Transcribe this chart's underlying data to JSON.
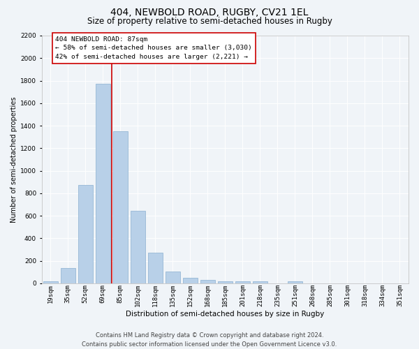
{
  "title": "404, NEWBOLD ROAD, RUGBY, CV21 1EL",
  "subtitle": "Size of property relative to semi-detached houses in Rugby",
  "xlabel": "Distribution of semi-detached houses by size in Rugby",
  "ylabel": "Number of semi-detached properties",
  "footer_line1": "Contains HM Land Registry data © Crown copyright and database right 2024.",
  "footer_line2": "Contains public sector information licensed under the Open Government Licence v3.0.",
  "categories": [
    "19sqm",
    "35sqm",
    "52sqm",
    "69sqm",
    "85sqm",
    "102sqm",
    "118sqm",
    "135sqm",
    "152sqm",
    "168sqm",
    "185sqm",
    "201sqm",
    "218sqm",
    "235sqm",
    "251sqm",
    "268sqm",
    "285sqm",
    "301sqm",
    "318sqm",
    "334sqm",
    "351sqm"
  ],
  "values": [
    15,
    135,
    875,
    1775,
    1350,
    645,
    270,
    105,
    50,
    30,
    20,
    15,
    15,
    0,
    20,
    0,
    0,
    0,
    0,
    0,
    0
  ],
  "bar_color": "#b8d0e8",
  "bar_edge_color": "#8ab0d0",
  "redline_x": 3.5,
  "annotation_text": "404 NEWBOLD ROAD: 87sqm\n← 58% of semi-detached houses are smaller (3,030)\n42% of semi-detached houses are larger (2,221) →",
  "annotation_box_facecolor": "#ffffff",
  "annotation_box_edgecolor": "#cc0000",
  "ylim": [
    0,
    2200
  ],
  "yticks": [
    0,
    200,
    400,
    600,
    800,
    1000,
    1200,
    1400,
    1600,
    1800,
    2000,
    2200
  ],
  "background_color": "#f0f4f8",
  "grid_color": "#ffffff",
  "title_fontsize": 10,
  "subtitle_fontsize": 8.5,
  "xlabel_fontsize": 7.5,
  "ylabel_fontsize": 7,
  "tick_fontsize": 6.5,
  "annotation_fontsize": 6.8,
  "footer_fontsize": 6.0
}
